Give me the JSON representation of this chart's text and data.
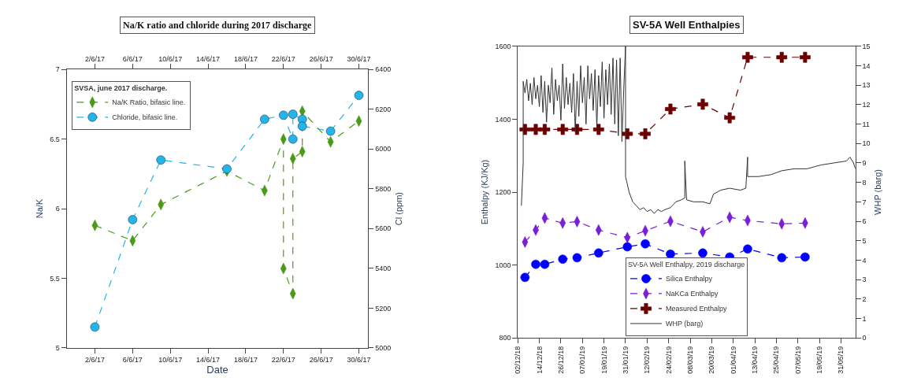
{
  "chart_data": [
    {
      "type": "line",
      "title": "Na/K ratio and chloride during 2017 discharge",
      "xlabel": "Date",
      "ylabel": "Na/K",
      "y2label": "Cl (ppm)",
      "legend_title": "SVSA, june 2017 discharge.",
      "legend": "top left",
      "xlim": [
        "2017-05-30",
        "2017-07-01"
      ],
      "xticks": [
        {
          "value": "2017-06-02",
          "label": "2/6/17"
        },
        {
          "value": "2017-06-06",
          "label": "6/6/17"
        },
        {
          "value": "2017-06-10",
          "label": "10/6/17"
        },
        {
          "value": "2017-06-14",
          "label": "14/6/17"
        },
        {
          "value": "2017-06-18",
          "label": "18/6/17"
        },
        {
          "value": "2017-06-22",
          "label": "22/6/17"
        },
        {
          "value": "2017-06-26",
          "label": "26/6/17"
        },
        {
          "value": "2017-06-30",
          "label": "30/6/17"
        }
      ],
      "x2lim": [
        "2017-05-30",
        "2017-07-01"
      ],
      "x2ticks": [
        {
          "value": "2017-06-02",
          "label": "2/6/17"
        },
        {
          "value": "2017-06-06",
          "label": "6/6/17"
        },
        {
          "value": "2017-06-10",
          "label": "10/6/17"
        },
        {
          "value": "2017-06-14",
          "label": "14/6/17"
        },
        {
          "value": "2017-06-18",
          "label": "18/6/17"
        },
        {
          "value": "2017-06-22",
          "label": "22/6/17"
        },
        {
          "value": "2017-06-26",
          "label": "26/6/17"
        },
        {
          "value": "2017-06-30",
          "label": "30/6/17"
        }
      ],
      "ylim": [
        5,
        7
      ],
      "yticks": [
        5,
        5.5,
        6,
        6.5,
        7
      ],
      "y2lim": [
        5000,
        6400
      ],
      "y2ticks": [
        5000,
        5200,
        5400,
        5600,
        5800,
        6000,
        6200,
        6400
      ],
      "series": [
        {
          "name": "Na/K Ratio, bifasic line.",
          "color": "#4a9a1a",
          "marker": "diamond",
          "line_style": "dashed",
          "x": [
            "2017-06-02",
            "2017-06-06",
            "2017-06-09",
            "2017-06-16",
            "2017-06-20",
            "2017-06-22",
            "2017-06-22",
            "2017-06-23",
            "2017-06-23",
            "2017-06-24",
            "2017-06-24",
            "2017-06-27",
            "2017-06-30"
          ],
          "values": [
            5.88,
            5.77,
            6.03,
            6.27,
            6.13,
            6.5,
            5.57,
            5.39,
            6.36,
            6.41,
            6.7,
            6.48,
            6.63
          ]
        },
        {
          "name": "Chloride, bifasic line.",
          "color": "#22b5e5",
          "marker": "circle",
          "line_style": "dashed",
          "axis": "y2",
          "x": [
            "2017-06-02",
            "2017-06-06",
            "2017-06-09",
            "2017-06-16",
            "2017-06-20",
            "2017-06-22",
            "2017-06-23",
            "2017-06-23",
            "2017-06-24",
            "2017-06-24",
            "2017-06-27",
            "2017-06-30"
          ],
          "values": [
            5105,
            5645,
            5945,
            5900,
            6150,
            6170,
            6050,
            6175,
            6150,
            6115,
            6090,
            6270
          ]
        }
      ]
    },
    {
      "type": "line",
      "title": "SV-5A Well Enthalpies",
      "ylabel": "Enthalpy (KJ/Kg)",
      "y2label": "WHP (barg)",
      "legend_title": "SV-5A Well Enthalpy, 2019 discharge",
      "legend": "bottom",
      "xlim": [
        "2018-12-02",
        "2019-06-08"
      ],
      "xticks": [
        {
          "value": "2018-12-02",
          "label": "02/12/18"
        },
        {
          "value": "2018-12-14",
          "label": "14/12/18"
        },
        {
          "value": "2018-12-26",
          "label": "26/12/18"
        },
        {
          "value": "2019-01-07",
          "label": "07/01/19"
        },
        {
          "value": "2019-01-19",
          "label": "19/01/19"
        },
        {
          "value": "2019-01-31",
          "label": "31/01/19"
        },
        {
          "value": "2019-02-12",
          "label": "12/02/19"
        },
        {
          "value": "2019-02-24",
          "label": "24/02/19"
        },
        {
          "value": "2019-03-08",
          "label": "08/03/19"
        },
        {
          "value": "2019-03-20",
          "label": "20/03/19"
        },
        {
          "value": "2019-04-01",
          "label": "01/04/19"
        },
        {
          "value": "2019-04-13",
          "label": "13/04/19"
        },
        {
          "value": "2019-04-25",
          "label": "25/04/19"
        },
        {
          "value": "2019-05-07",
          "label": "07/05/19"
        },
        {
          "value": "2019-05-19",
          "label": "19/05/19"
        },
        {
          "value": "2019-05-31",
          "label": "31/05/19"
        }
      ],
      "ylim": [
        800,
        1600
      ],
      "yticks": [
        800,
        1000,
        1200,
        1400,
        1600
      ],
      "y2lim": [
        0,
        15
      ],
      "y2ticks": [
        0,
        1,
        2,
        3,
        4,
        5,
        6,
        7,
        8,
        9,
        10,
        11,
        12,
        13,
        14,
        15
      ],
      "x": [
        "2018-12-06",
        "2018-12-12",
        "2018-12-17",
        "2018-12-27",
        "2019-01-04",
        "2019-01-16",
        "2019-02-01",
        "2019-02-11",
        "2019-02-25",
        "2019-03-15",
        "2019-03-30",
        "2019-04-09",
        "2019-04-28",
        "2019-05-11"
      ],
      "series": [
        {
          "name": "Silica Enthalpy",
          "color": "#0000ff",
          "marker": "circle",
          "line_style": "dashed",
          "values": [
            966,
            1002,
            1002,
            1016,
            1020,
            1033,
            1050,
            1058,
            1030,
            1033,
            1022,
            1044,
            1020,
            1022
          ]
        },
        {
          "name": "NaKCa Enthalpy",
          "color": "#7a1fd6",
          "marker": "diamond",
          "line_style": "dashed",
          "values": [
            1063,
            1096,
            1129,
            1115,
            1119,
            1096,
            1075,
            1094,
            1120,
            1091,
            1131,
            1122,
            1113,
            1115
          ]
        },
        {
          "name": "Measured Enthalpy",
          "color": "#6b0000",
          "marker": "cross",
          "line_style": "dashed",
          "values": [
            1372,
            1372,
            1372,
            1372,
            1372,
            1372,
            1360,
            1360,
            1428,
            1441,
            1404,
            1570,
            1570,
            1570
          ]
        },
        {
          "name": "WHP (barg)",
          "color": "#333333",
          "marker": "none",
          "line_style": "solid",
          "axis": "y2",
          "x": [
            "2018-12-04",
            "2018-12-05",
            "2018-12-05",
            "2018-12-06",
            "2018-12-07",
            "2018-12-08",
            "2018-12-09",
            "2018-12-10",
            "2018-12-11",
            "2018-12-12",
            "2018-12-13",
            "2018-12-14",
            "2018-12-15",
            "2018-12-16",
            "2018-12-17",
            "2018-12-18",
            "2018-12-19",
            "2018-12-20",
            "2018-12-21",
            "2018-12-22",
            "2018-12-23",
            "2018-12-24",
            "2018-12-25",
            "2018-12-26",
            "2018-12-27",
            "2018-12-28",
            "2018-12-29",
            "2018-12-30",
            "2018-12-31",
            "2019-01-01",
            "2019-01-02",
            "2019-01-03",
            "2019-01-04",
            "2019-01-05",
            "2019-01-06",
            "2019-01-07",
            "2019-01-08",
            "2019-01-09",
            "2019-01-10",
            "2019-01-11",
            "2019-01-12",
            "2019-01-13",
            "2019-01-14",
            "2019-01-15",
            "2019-01-16",
            "2019-01-17",
            "2019-01-18",
            "2019-01-19",
            "2019-01-20",
            "2019-01-21",
            "2019-01-22",
            "2019-01-23",
            "2019-01-24",
            "2019-01-25",
            "2019-01-26",
            "2019-01-27",
            "2019-01-28",
            "2019-01-29",
            "2019-01-30",
            "2019-01-31",
            "2019-01-31",
            "2019-02-02",
            "2019-02-04",
            "2019-02-06",
            "2019-02-08",
            "2019-02-10",
            "2019-02-12",
            "2019-02-14",
            "2019-02-16",
            "2019-02-18",
            "2019-02-20",
            "2019-02-22",
            "2019-02-25",
            "2019-02-28",
            "2019-03-03",
            "2019-03-05",
            "2019-03-05",
            "2019-03-06",
            "2019-03-10",
            "2019-03-15",
            "2019-03-19",
            "2019-03-21",
            "2019-03-25",
            "2019-03-30",
            "2019-04-05",
            "2019-04-08",
            "2019-04-09",
            "2019-04-09",
            "2019-04-15",
            "2019-04-22",
            "2019-04-28",
            "2019-05-05",
            "2019-05-12",
            "2019-05-20",
            "2019-05-27",
            "2019-06-03",
            "2019-06-05",
            "2019-06-07",
            "2019-06-08"
          ],
          "values": [
            6.8,
            9.0,
            13.2,
            12.6,
            13.3,
            12.2,
            13.1,
            12.0,
            13.4,
            12.3,
            13.0,
            11.9,
            13.5,
            11.6,
            13.2,
            11.1,
            13.0,
            12.1,
            13.9,
            11.5,
            13.3,
            12.2,
            13.0,
            11.2,
            14.1,
            11.8,
            13.4,
            12.0,
            13.1,
            11.6,
            13.6,
            10.6,
            13.2,
            11.4,
            14.0,
            12.1,
            13.4,
            11.0,
            14.0,
            12.3,
            13.6,
            11.7,
            13.8,
            10.8,
            13.5,
            11.9,
            14.2,
            11.3,
            13.8,
            12.0,
            14.1,
            11.5,
            14.4,
            11.0,
            14.3,
            10.4,
            14.4,
            10.1,
            12.8,
            15.0,
            8.3,
            7.5,
            7.0,
            6.8,
            6.6,
            6.7,
            6.5,
            6.6,
            6.4,
            6.6,
            6.5,
            6.6,
            6.7,
            7.0,
            7.1,
            7.2,
            9.1,
            7.1,
            7.0,
            7.0,
            6.9,
            7.4,
            7.6,
            7.7,
            7.6,
            7.7,
            9.3,
            8.3,
            8.3,
            8.4,
            8.6,
            8.7,
            8.7,
            8.9,
            9.0,
            9.1,
            9.3,
            9.0,
            8.7
          ]
        }
      ]
    }
  ]
}
